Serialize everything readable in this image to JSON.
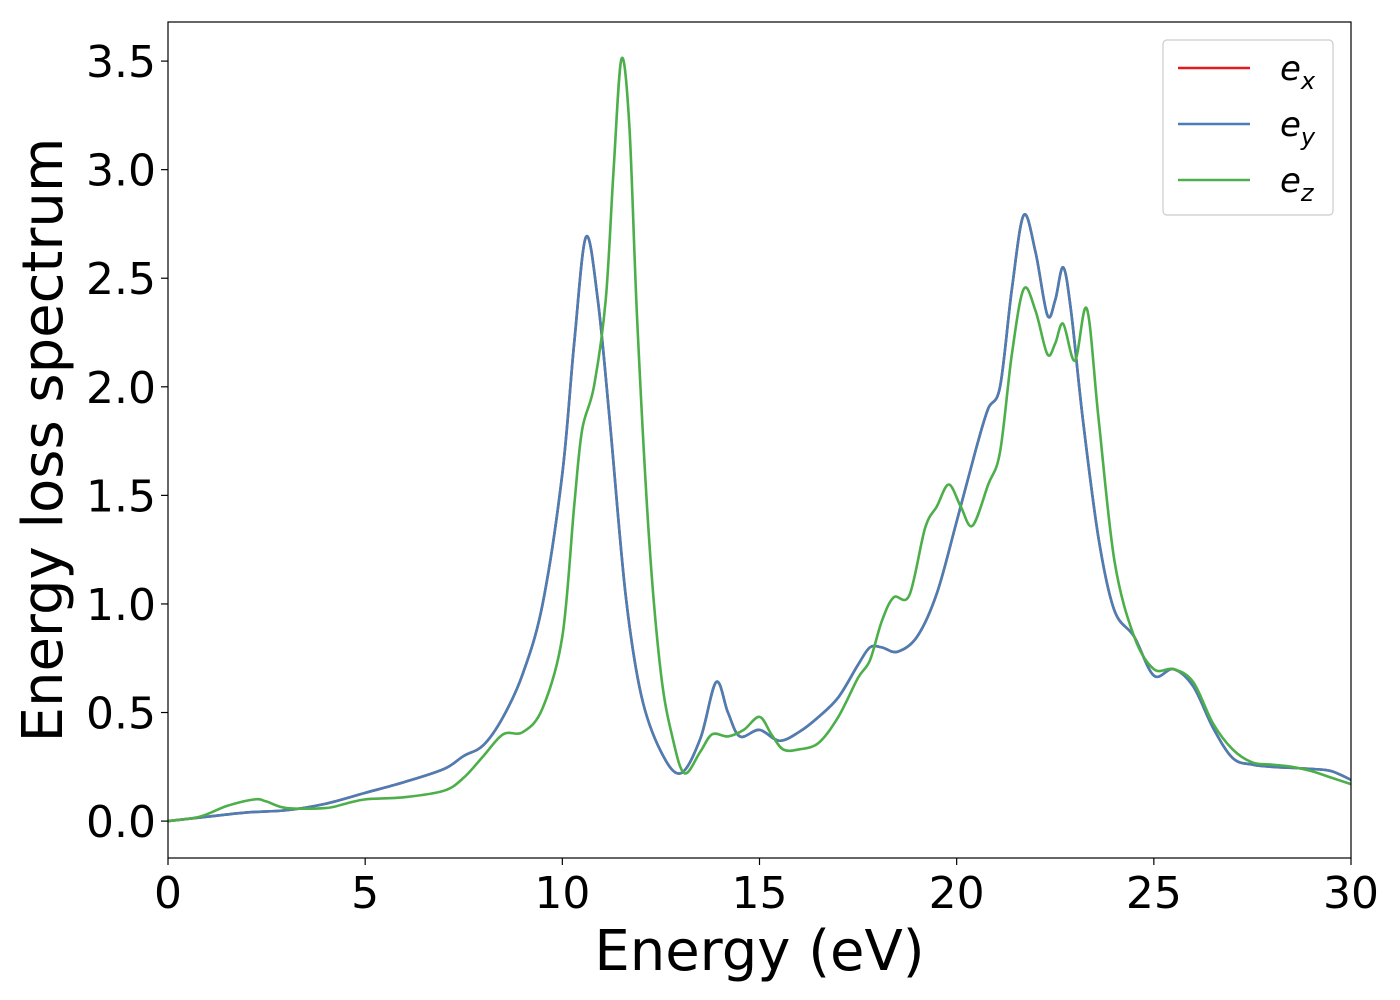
{
  "chart_data": {
    "type": "line",
    "title": "",
    "xlabel": "Energy (eV)",
    "ylabel": "Energy loss spectrum",
    "xlim": [
      0,
      30
    ],
    "ylim": [
      -0.17,
      3.68
    ],
    "xticks": [
      0,
      5,
      10,
      15,
      20,
      25,
      30
    ],
    "xtick_labels": [
      "0",
      "5",
      "10",
      "15",
      "20",
      "25",
      "30"
    ],
    "yticks": [
      0.0,
      0.5,
      1.0,
      1.5,
      2.0,
      2.5,
      3.0,
      3.5
    ],
    "ytick_labels": [
      "0.0",
      "0.5",
      "1.0",
      "1.5",
      "2.0",
      "2.5",
      "3.0",
      "3.5"
    ],
    "grid": false,
    "legend_position": "top-right",
    "series": [
      {
        "name": "e_x",
        "label_base": "e",
        "label_sub": "x",
        "color": "#e41a1c",
        "points": [
          [
            0,
            0
          ],
          [
            1,
            0.02
          ],
          [
            2,
            0.04
          ],
          [
            3,
            0.05
          ],
          [
            4,
            0.08
          ],
          [
            5,
            0.13
          ],
          [
            6,
            0.18
          ],
          [
            7,
            0.24
          ],
          [
            7.5,
            0.3
          ],
          [
            8,
            0.35
          ],
          [
            8.5,
            0.48
          ],
          [
            9,
            0.68
          ],
          [
            9.5,
            1.0
          ],
          [
            10,
            1.6
          ],
          [
            10.3,
            2.2
          ],
          [
            10.6,
            2.69
          ],
          [
            10.9,
            2.4
          ],
          [
            11.2,
            1.85
          ],
          [
            11.6,
            1.05
          ],
          [
            12,
            0.58
          ],
          [
            12.5,
            0.32
          ],
          [
            13,
            0.22
          ],
          [
            13.5,
            0.38
          ],
          [
            13.9,
            0.64
          ],
          [
            14.2,
            0.5
          ],
          [
            14.5,
            0.39
          ],
          [
            15,
            0.42
          ],
          [
            15.5,
            0.37
          ],
          [
            16,
            0.41
          ],
          [
            16.5,
            0.48
          ],
          [
            17,
            0.57
          ],
          [
            17.5,
            0.72
          ],
          [
            17.8,
            0.8
          ],
          [
            18.1,
            0.8
          ],
          [
            18.5,
            0.78
          ],
          [
            19,
            0.85
          ],
          [
            19.5,
            1.05
          ],
          [
            20,
            1.38
          ],
          [
            20.5,
            1.72
          ],
          [
            20.8,
            1.9
          ],
          [
            21.1,
            2.0
          ],
          [
            21.4,
            2.45
          ],
          [
            21.7,
            2.79
          ],
          [
            22,
            2.62
          ],
          [
            22.3,
            2.33
          ],
          [
            22.5,
            2.4
          ],
          [
            22.7,
            2.55
          ],
          [
            22.9,
            2.35
          ],
          [
            23.2,
            1.85
          ],
          [
            23.6,
            1.3
          ],
          [
            24,
            0.97
          ],
          [
            24.5,
            0.85
          ],
          [
            25,
            0.67
          ],
          [
            25.5,
            0.7
          ],
          [
            26,
            0.62
          ],
          [
            26.5,
            0.43
          ],
          [
            27,
            0.29
          ],
          [
            27.5,
            0.26
          ],
          [
            28,
            0.25
          ],
          [
            29,
            0.24
          ],
          [
            29.5,
            0.23
          ],
          [
            30,
            0.19
          ]
        ]
      },
      {
        "name": "e_y",
        "label_base": "e",
        "label_sub": "y",
        "color": "#4a7fb5",
        "points": [
          [
            0,
            0
          ],
          [
            1,
            0.02
          ],
          [
            2,
            0.04
          ],
          [
            3,
            0.05
          ],
          [
            4,
            0.08
          ],
          [
            5,
            0.13
          ],
          [
            6,
            0.18
          ],
          [
            7,
            0.24
          ],
          [
            7.5,
            0.3
          ],
          [
            8,
            0.35
          ],
          [
            8.5,
            0.48
          ],
          [
            9,
            0.68
          ],
          [
            9.5,
            1.0
          ],
          [
            10,
            1.6
          ],
          [
            10.3,
            2.2
          ],
          [
            10.6,
            2.69
          ],
          [
            10.9,
            2.4
          ],
          [
            11.2,
            1.85
          ],
          [
            11.6,
            1.05
          ],
          [
            12,
            0.58
          ],
          [
            12.5,
            0.32
          ],
          [
            13,
            0.22
          ],
          [
            13.5,
            0.38
          ],
          [
            13.9,
            0.64
          ],
          [
            14.2,
            0.5
          ],
          [
            14.5,
            0.39
          ],
          [
            15,
            0.42
          ],
          [
            15.5,
            0.37
          ],
          [
            16,
            0.41
          ],
          [
            16.5,
            0.48
          ],
          [
            17,
            0.57
          ],
          [
            17.5,
            0.72
          ],
          [
            17.8,
            0.8
          ],
          [
            18.1,
            0.8
          ],
          [
            18.5,
            0.78
          ],
          [
            19,
            0.85
          ],
          [
            19.5,
            1.05
          ],
          [
            20,
            1.38
          ],
          [
            20.5,
            1.72
          ],
          [
            20.8,
            1.9
          ],
          [
            21.1,
            2.0
          ],
          [
            21.4,
            2.45
          ],
          [
            21.7,
            2.79
          ],
          [
            22,
            2.62
          ],
          [
            22.3,
            2.33
          ],
          [
            22.5,
            2.4
          ],
          [
            22.7,
            2.55
          ],
          [
            22.9,
            2.35
          ],
          [
            23.2,
            1.85
          ],
          [
            23.6,
            1.3
          ],
          [
            24,
            0.97
          ],
          [
            24.5,
            0.85
          ],
          [
            25,
            0.67
          ],
          [
            25.5,
            0.7
          ],
          [
            26,
            0.62
          ],
          [
            26.5,
            0.43
          ],
          [
            27,
            0.29
          ],
          [
            27.5,
            0.26
          ],
          [
            28,
            0.25
          ],
          [
            29,
            0.24
          ],
          [
            29.5,
            0.23
          ],
          [
            30,
            0.19
          ]
        ]
      },
      {
        "name": "e_z",
        "label_base": "e",
        "label_sub": "z",
        "color": "#4daf4a",
        "points": [
          [
            0,
            0
          ],
          [
            0.8,
            0.02
          ],
          [
            1.5,
            0.07
          ],
          [
            2.2,
            0.1
          ],
          [
            2.5,
            0.09
          ],
          [
            3,
            0.06
          ],
          [
            4,
            0.06
          ],
          [
            4.5,
            0.08
          ],
          [
            5,
            0.1
          ],
          [
            6,
            0.11
          ],
          [
            7,
            0.14
          ],
          [
            7.5,
            0.2
          ],
          [
            8,
            0.3
          ],
          [
            8.5,
            0.4
          ],
          [
            9,
            0.41
          ],
          [
            9.5,
            0.52
          ],
          [
            10,
            0.85
          ],
          [
            10.3,
            1.45
          ],
          [
            10.5,
            1.8
          ],
          [
            10.8,
            2.0
          ],
          [
            11.1,
            2.4
          ],
          [
            11.3,
            3.0
          ],
          [
            11.5,
            3.51
          ],
          [
            11.7,
            3.2
          ],
          [
            11.9,
            2.3
          ],
          [
            12.2,
            1.3
          ],
          [
            12.5,
            0.68
          ],
          [
            12.8,
            0.38
          ],
          [
            13.1,
            0.22
          ],
          [
            13.5,
            0.32
          ],
          [
            13.8,
            0.4
          ],
          [
            14.2,
            0.39
          ],
          [
            14.6,
            0.42
          ],
          [
            15,
            0.48
          ],
          [
            15.3,
            0.4
          ],
          [
            15.6,
            0.33
          ],
          [
            16,
            0.33
          ],
          [
            16.5,
            0.36
          ],
          [
            17,
            0.48
          ],
          [
            17.5,
            0.66
          ],
          [
            17.8,
            0.74
          ],
          [
            18.1,
            0.92
          ],
          [
            18.4,
            1.03
          ],
          [
            18.8,
            1.04
          ],
          [
            19.2,
            1.35
          ],
          [
            19.5,
            1.45
          ],
          [
            19.8,
            1.55
          ],
          [
            20.1,
            1.45
          ],
          [
            20.4,
            1.36
          ],
          [
            20.8,
            1.55
          ],
          [
            21.1,
            1.7
          ],
          [
            21.4,
            2.15
          ],
          [
            21.7,
            2.45
          ],
          [
            22,
            2.35
          ],
          [
            22.3,
            2.15
          ],
          [
            22.5,
            2.2
          ],
          [
            22.7,
            2.29
          ],
          [
            23,
            2.12
          ],
          [
            23.3,
            2.36
          ],
          [
            23.6,
            1.85
          ],
          [
            24,
            1.2
          ],
          [
            24.5,
            0.85
          ],
          [
            25,
            0.7
          ],
          [
            25.5,
            0.7
          ],
          [
            26,
            0.64
          ],
          [
            26.5,
            0.45
          ],
          [
            27,
            0.33
          ],
          [
            27.5,
            0.27
          ],
          [
            28,
            0.26
          ],
          [
            28.5,
            0.25
          ],
          [
            29,
            0.23
          ],
          [
            29.5,
            0.2
          ],
          [
            30,
            0.17
          ]
        ]
      }
    ]
  }
}
